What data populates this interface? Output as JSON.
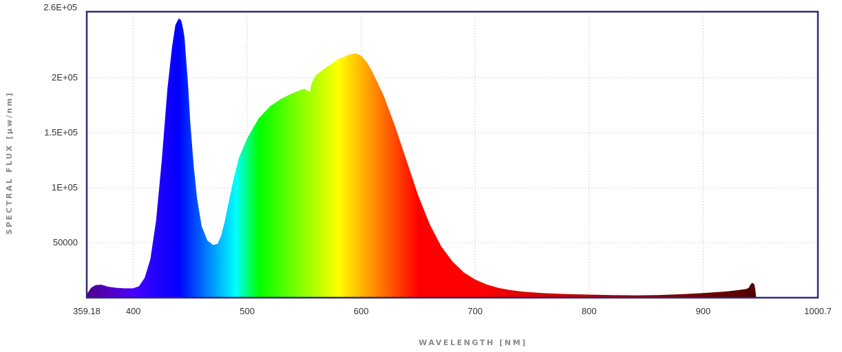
{
  "chart_data": {
    "type": "area",
    "xlabel": "WAVELENGTH [NM]",
    "ylabel": "SPECTRAL FLUX [µw/nm]",
    "xlim": [
      359.18,
      1000.7
    ],
    "ylim": [
      0,
      260000
    ],
    "x_ticks": [
      {
        "value": 359.18,
        "label": "359.18"
      },
      {
        "value": 400,
        "label": "400"
      },
      {
        "value": 500,
        "label": "500"
      },
      {
        "value": 600,
        "label": "600"
      },
      {
        "value": 700,
        "label": "700"
      },
      {
        "value": 800,
        "label": "800"
      },
      {
        "value": 900,
        "label": "900"
      },
      {
        "value": 1000.7,
        "label": "1000.7"
      }
    ],
    "y_ticks": [
      {
        "value": 50000,
        "label": "50000"
      },
      {
        "value": 100000,
        "label": "1E+05"
      },
      {
        "value": 150000,
        "label": "1.5E+05"
      },
      {
        "value": 200000,
        "label": "2E+05"
      },
      {
        "value": 260000,
        "label": "2.6E+05"
      }
    ],
    "grid": true,
    "fill": "spectral wavelength colors",
    "frame_color": "#2e2a7a",
    "series": [
      {
        "x": [
          359.18,
          363,
          367,
          372,
          378,
          385,
          392,
          400,
          405,
          410,
          415,
          420,
          425,
          430,
          434,
          437,
          440,
          442,
          443,
          444,
          445,
          446,
          448,
          450,
          453,
          456,
          460,
          465,
          470,
          474,
          477,
          480,
          484,
          488,
          493,
          500,
          510,
          520,
          530,
          540,
          550,
          555,
          556,
          557,
          560,
          570,
          580,
          590,
          595,
          600,
          605,
          610,
          620,
          630,
          640,
          650,
          660,
          670,
          680,
          690,
          700,
          710,
          720,
          730,
          740,
          750,
          760,
          780,
          800,
          820,
          840,
          860,
          880,
          900,
          920,
          930,
          935,
          938,
          940,
          941,
          942,
          943,
          944,
          945,
          946,
          946.5
        ],
        "y": [
          3000,
          9000,
          11500,
          11800,
          10000,
          9000,
          8500,
          8500,
          10500,
          18000,
          35000,
          70000,
          125000,
          190000,
          228000,
          248000,
          254000,
          252000,
          248000,
          243000,
          236000,
          222000,
          195000,
          160000,
          120000,
          90000,
          65000,
          52000,
          48000,
          49000,
          56000,
          68000,
          88000,
          108000,
          128000,
          145000,
          163000,
          174000,
          181000,
          186000,
          190000,
          187000,
          193000,
          196000,
          202000,
          210000,
          217000,
          221000,
          222000,
          220000,
          214000,
          205000,
          183000,
          155000,
          124000,
          93000,
          67000,
          47000,
          33000,
          23000,
          16500,
          12000,
          9000,
          7000,
          5700,
          4800,
          4100,
          3300,
          2800,
          2400,
          2100,
          2400,
          3100,
          4200,
          5600,
          6800,
          7500,
          8000,
          9000,
          11000,
          12500,
          13500,
          13000,
          12000,
          6000,
          0
        ]
      }
    ]
  }
}
